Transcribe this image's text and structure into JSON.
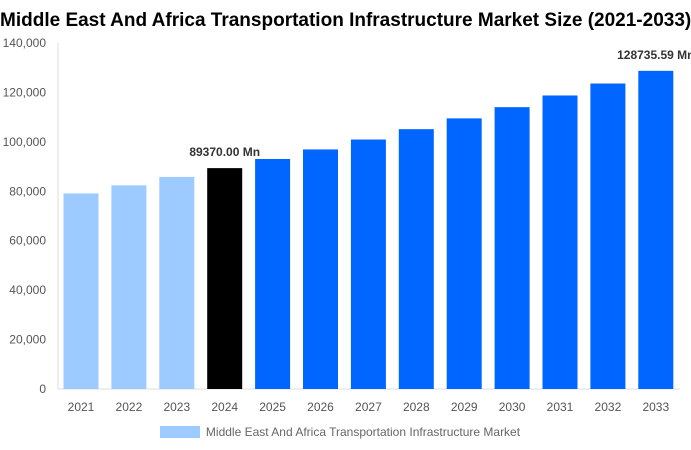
{
  "chart_data": {
    "type": "bar",
    "title": "Middle East And Africa Transportation Infrastructure Market Size (2021-2033)",
    "categories": [
      "2021",
      "2022",
      "2023",
      "2024",
      "2025",
      "2026",
      "2027",
      "2028",
      "2029",
      "2030",
      "2031",
      "2032",
      "2033"
    ],
    "series": [
      {
        "name": "Middle East And Africa Transportation Infrastructure Market",
        "values": [
          79140,
          82410,
          85820,
          89370,
          93070,
          96930,
          100950,
          105140,
          109500,
          114040,
          118770,
          123610,
          128735.59
        ]
      }
    ],
    "data_labels": {
      "3": "89370.00 Mn",
      "12": "128735.59 Mn"
    },
    "ylim": [
      0,
      140000
    ],
    "yticks": [
      "0",
      "20,000",
      "40,000",
      "60,000",
      "80,000",
      "100,000",
      "120,000",
      "140,000"
    ],
    "grid": false,
    "legend_position": "bottom",
    "colors": {
      "historical": "#9ecbff",
      "base_year": "#000000",
      "forecast": "#0066ff",
      "legend": "#9ecbff"
    }
  }
}
